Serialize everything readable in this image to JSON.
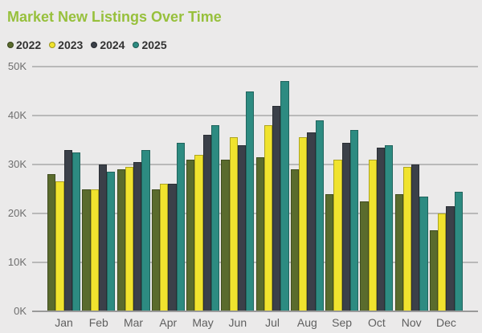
{
  "title": "Market New Listings Over Time",
  "colors": {
    "title": "#97c03c",
    "background": "#ebeaea",
    "gridline": "#b9b9b9",
    "axis_line": "#9a9a9a",
    "y_axis_text": "#6e6e6e",
    "x_axis_text": "#5f5f5f",
    "legend_text": "#323232"
  },
  "legend": {
    "items": [
      {
        "label": "2022",
        "color": "#5a6b2d"
      },
      {
        "label": "2023",
        "color": "#f0e32e"
      },
      {
        "label": "2024",
        "color": "#3b4049"
      },
      {
        "label": "2025",
        "color": "#2d8b81"
      }
    ]
  },
  "chart_data": {
    "type": "bar",
    "title": "Market New Listings Over Time",
    "xlabel": "",
    "ylabel": "",
    "unit": "thousands of listings",
    "categories": [
      "Jan",
      "Feb",
      "Mar",
      "Apr",
      "May",
      "Jun",
      "Jul",
      "Aug",
      "Sep",
      "Oct",
      "Nov",
      "Dec"
    ],
    "series": [
      {
        "name": "2022",
        "color": "#5a6b2d",
        "values": [
          28,
          25,
          29,
          25,
          31,
          31,
          31.5,
          29,
          24,
          22.5,
          24,
          16.5
        ]
      },
      {
        "name": "2023",
        "color": "#f0e32e",
        "values": [
          26.5,
          25,
          29.5,
          26,
          32,
          35.5,
          38,
          35.5,
          31,
          31,
          29.5,
          20
        ]
      },
      {
        "name": "2024",
        "color": "#3b4049",
        "values": [
          33,
          30,
          30.5,
          26,
          36,
          34,
          42,
          36.5,
          34.5,
          33.5,
          30,
          21.5
        ]
      },
      {
        "name": "2025",
        "color": "#2d8b81",
        "values": [
          32.5,
          28.5,
          33,
          34.5,
          38,
          45,
          47,
          39,
          37,
          34,
          23.5,
          24.5
        ]
      }
    ],
    "ylim": [
      0,
      50
    ],
    "yticks": [
      "0K",
      "10K",
      "20K",
      "30K",
      "40K",
      "50K"
    ],
    "ytick_values": [
      0,
      10,
      20,
      30,
      40,
      50
    ],
    "grid": true,
    "legend_position": "top-left"
  }
}
